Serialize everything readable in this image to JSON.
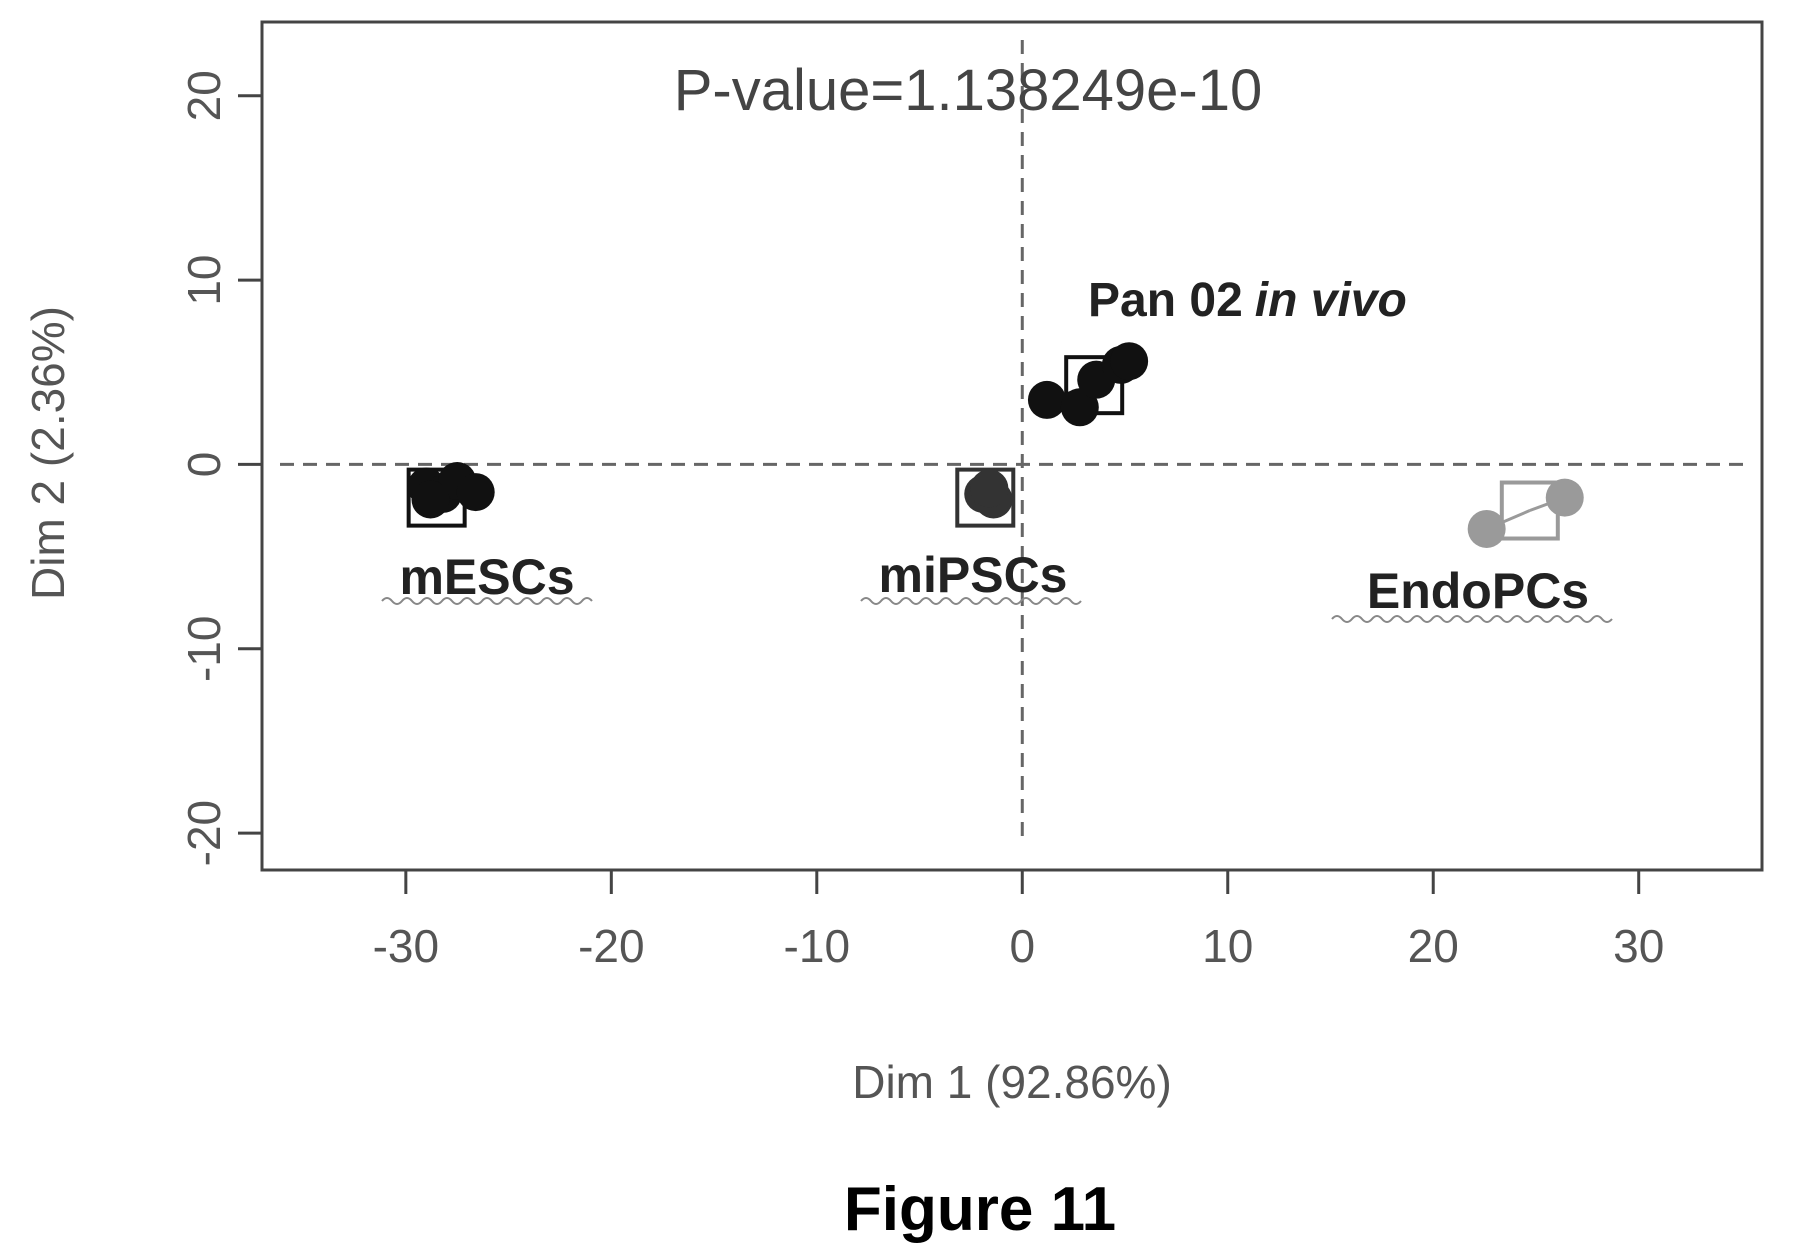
{
  "chart_data": {
    "type": "scatter",
    "xlabel": "Dim 1 (92.86%)",
    "ylabel": "Dim 2 (2.36%)",
    "xlim": [
      -37,
      36
    ],
    "ylim": [
      -22,
      24
    ],
    "xticks": [
      "-30",
      "-20",
      "-10",
      "0",
      "10",
      "20",
      "30"
    ],
    "yticks": [
      "20",
      "10",
      "0",
      "-10",
      "-20"
    ],
    "reference_lines": {
      "x": 0,
      "y": 0,
      "style": "dashed"
    },
    "annotation": "P-value=1.138249e-10",
    "groups": [
      {
        "name": "mESCs",
        "color": "#111111",
        "label_style": "bold-underline-wavy",
        "centroid": [
          -28.5,
          -1.8
        ],
        "points": [
          [
            -29.0,
            -1.2
          ],
          [
            -28.2,
            -1.6
          ],
          [
            -27.5,
            -0.9
          ],
          [
            -26.6,
            -1.5
          ],
          [
            -28.8,
            -1.9
          ]
        ]
      },
      {
        "name": "miPSCs",
        "color": "#333333",
        "label_style": "bold-underline-wavy",
        "centroid": [
          -1.8,
          -1.8
        ],
        "points": [
          [
            -1.9,
            -1.6
          ],
          [
            -1.4,
            -1.9
          ],
          [
            -1.6,
            -1.3
          ]
        ]
      },
      {
        "name": "Pan 02 in vivo",
        "name_parts": [
          "Pan 02",
          "in vivo"
        ],
        "color": "#111111",
        "centroid": [
          3.5,
          4.3
        ],
        "points": [
          [
            1.2,
            3.5
          ],
          [
            2.8,
            3.1
          ],
          [
            3.6,
            4.6
          ],
          [
            4.8,
            5.4
          ],
          [
            5.2,
            5.6
          ]
        ]
      },
      {
        "name": "EndoPCs",
        "color": "#9a9a9a",
        "label_style": "bold-underline-wavy",
        "centroid": [
          24.7,
          -2.5
        ],
        "points": [
          [
            22.6,
            -3.5
          ],
          [
            26.4,
            -1.8
          ]
        ]
      }
    ]
  },
  "figure_caption": "Figure 11"
}
